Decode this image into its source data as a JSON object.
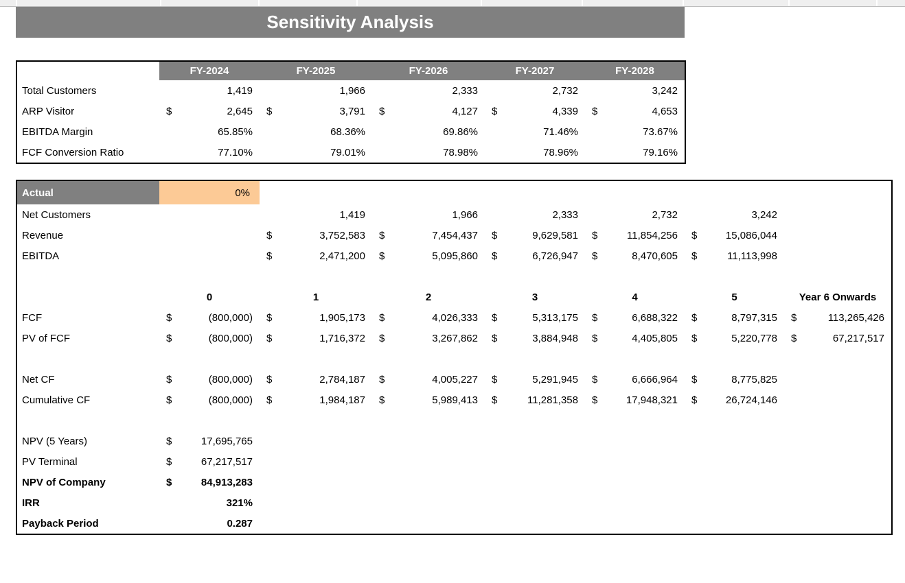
{
  "title": "Sensitivity Analysis",
  "colors": {
    "header_gray": "#808080",
    "highlight_orange": "#FCCA96",
    "border_black": "#000000"
  },
  "fy": {
    "h": [
      "FY-2024",
      "FY-2025",
      "FY-2026",
      "FY-2027",
      "FY-2028"
    ],
    "r0": {
      "label": "Total Customers",
      "v": [
        "1,419",
        "1,966",
        "2,333",
        "2,732",
        "3,242"
      ]
    },
    "r1": {
      "label": "ARP Visitor",
      "cur": "$",
      "v": [
        "2,645",
        "3,791",
        "4,127",
        "4,339",
        "4,653"
      ]
    },
    "r2": {
      "label": "EBITDA Margin",
      "v": [
        "65.85%",
        "68.36%",
        "69.86%",
        "71.46%",
        "73.67%"
      ]
    },
    "r3": {
      "label": "FCF Conversion Ratio",
      "v": [
        "77.10%",
        "79.01%",
        "78.98%",
        "78.96%",
        "79.16%"
      ]
    }
  },
  "actual": {
    "label": "Actual",
    "value": "0%"
  },
  "proj": {
    "net_customers": {
      "label": "Net Customers",
      "v": [
        "1,419",
        "1,966",
        "2,333",
        "2,732",
        "3,242"
      ]
    },
    "revenue": {
      "label": "Revenue",
      "cur": "$",
      "v": [
        "3,752,583",
        "7,454,437",
        "9,629,581",
        "11,854,256",
        "15,086,044"
      ]
    },
    "ebitda": {
      "label": "EBITDA",
      "cur": "$",
      "v": [
        "2,471,200",
        "5,095,860",
        "6,726,947",
        "8,470,605",
        "11,113,998"
      ]
    }
  },
  "years": {
    "h": [
      "0",
      "1",
      "2",
      "3",
      "4",
      "5",
      "Year 6 Onwards"
    ]
  },
  "cf": {
    "fcf": {
      "label": "FCF",
      "cur": "$",
      "v": [
        "(800,000)",
        "1,905,173",
        "4,026,333",
        "5,313,175",
        "6,688,322",
        "8,797,315",
        "113,265,426"
      ]
    },
    "pv_fcf": {
      "label": "PV of FCF",
      "cur": "$",
      "v": [
        "(800,000)",
        "1,716,372",
        "3,267,862",
        "3,884,948",
        "4,405,805",
        "5,220,778",
        "67,217,517"
      ]
    },
    "net_cf": {
      "label": "Net CF",
      "cur": "$",
      "v": [
        "(800,000)",
        "2,784,187",
        "4,005,227",
        "5,291,945",
        "6,666,964",
        "8,775,825"
      ]
    },
    "cum_cf": {
      "label": "Cumulative CF",
      "cur": "$",
      "v": [
        "(800,000)",
        "1,984,187",
        "5,989,413",
        "11,281,358",
        "17,948,321",
        "26,724,146"
      ]
    }
  },
  "summary": {
    "npv5": {
      "label": "NPV (5 Years)",
      "cur": "$",
      "value": "17,695,765"
    },
    "pv_terminal": {
      "label": "PV Terminal",
      "cur": "$",
      "value": "67,217,517"
    },
    "npv_company": {
      "label": "NPV of Company",
      "cur": "$",
      "value": "84,913,283"
    },
    "irr": {
      "label": "IRR",
      "value": "321%"
    },
    "payback": {
      "label": "Payback Period",
      "value": "0.287"
    }
  }
}
